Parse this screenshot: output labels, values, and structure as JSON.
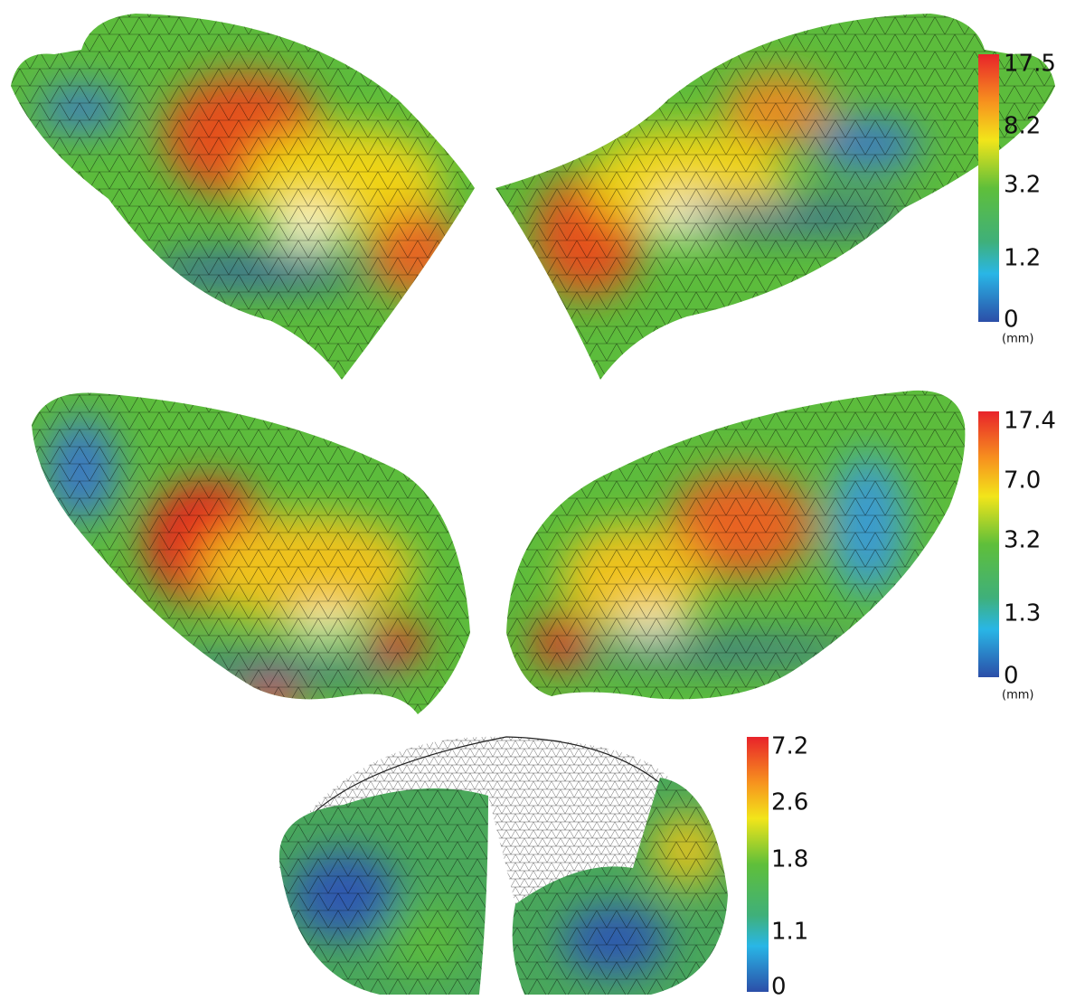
{
  "colorbars": [
    {
      "ticks": [
        "17.5",
        "8.2",
        "3.2",
        "1.2",
        "0"
      ],
      "unit": "(mm)"
    },
    {
      "ticks": [
        "17.4",
        "7.0",
        "3.2",
        "1.3",
        "0"
      ],
      "unit": "(mm)"
    },
    {
      "ticks": [
        "7.2",
        "2.6",
        "1.8",
        "1.1",
        "0"
      ]
    }
  ]
}
